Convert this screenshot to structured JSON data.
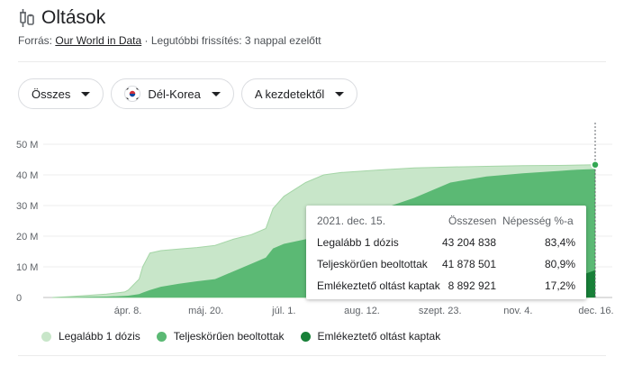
{
  "header": {
    "title": "Oltások",
    "source_prefix": "Forrás:",
    "source_link": "Our World in Data",
    "source_suffix": "· Legutóbbi frissítés: 3 nappal ezelőtt"
  },
  "filters": {
    "scope": "Összes",
    "country": "Dél-Korea",
    "range": "A kezdetektől"
  },
  "tooltip": {
    "date": "2021. dec. 15.",
    "col_total": "Összesen",
    "col_pct": "Népesség %-a",
    "rows": [
      {
        "label": "Legalább 1 dózis",
        "total": "43 204 838",
        "pct": "83,4%"
      },
      {
        "label": "Teljeskörűen beoltottak",
        "total": "41 878 501",
        "pct": "80,9%"
      },
      {
        "label": "Emlékeztető oltást kaptak",
        "total": "8 892 921",
        "pct": "17,2%"
      }
    ]
  },
  "legend": [
    {
      "label": "Legalább 1 dózis",
      "color": "#c8e6c9"
    },
    {
      "label": "Teljeskörűen beoltottak",
      "color": "#5bb974"
    },
    {
      "label": "Emlékeztető oltást kaptak",
      "color": "#188038"
    }
  ],
  "chart_data": {
    "type": "area",
    "y_ticks": [
      "0",
      "10 M",
      "20 M",
      "30 M",
      "40 M",
      "50 M"
    ],
    "x_ticks": [
      "ápr. 8.",
      "máj. 20.",
      "júl. 1.",
      "aug. 12.",
      "szept. 23.",
      "nov. 4.",
      "dec. 16."
    ],
    "ylim": [
      0,
      50
    ],
    "grid": true,
    "x": [
      0,
      10,
      20,
      30,
      40,
      42,
      48,
      50,
      54,
      60,
      70,
      80,
      90,
      100,
      110,
      118,
      122,
      128,
      140,
      150,
      160,
      180,
      200,
      220,
      240,
      260,
      280,
      290,
      300
    ],
    "series": [
      {
        "name": "Legalább 1 dózis",
        "color": "#c8e6c9",
        "values": [
          0.0,
          0.3,
          0.7,
          1.1,
          1.8,
          2.4,
          6.0,
          10.0,
          14.5,
          15.3,
          15.8,
          16.3,
          17.0,
          19.0,
          20.5,
          22.5,
          29.0,
          33.0,
          37.5,
          40.0,
          40.8,
          41.6,
          42.3,
          42.6,
          42.8,
          43.0,
          43.1,
          43.2,
          43.3
        ]
      },
      {
        "name": "Teljeskörűen beoltottak",
        "color": "#5bb974",
        "values": [
          0.0,
          0.1,
          0.2,
          0.3,
          0.5,
          0.6,
          1.1,
          1.6,
          2.4,
          3.5,
          4.5,
          5.3,
          6.0,
          8.5,
          11.0,
          13.0,
          16.0,
          17.5,
          19.0,
          20.0,
          24.0,
          28.5,
          32.5,
          37.5,
          39.5,
          40.5,
          41.3,
          41.7,
          41.9
        ]
      },
      {
        "name": "Emlékeztető oltást kaptak",
        "color": "#188038",
        "values": [
          0,
          0,
          0,
          0,
          0,
          0,
          0,
          0,
          0,
          0,
          0,
          0,
          0,
          0,
          0,
          0,
          0,
          0,
          0,
          0,
          0.1,
          0.3,
          0.6,
          1.1,
          1.9,
          3.2,
          4.8,
          6.8,
          8.9
        ]
      }
    ]
  }
}
